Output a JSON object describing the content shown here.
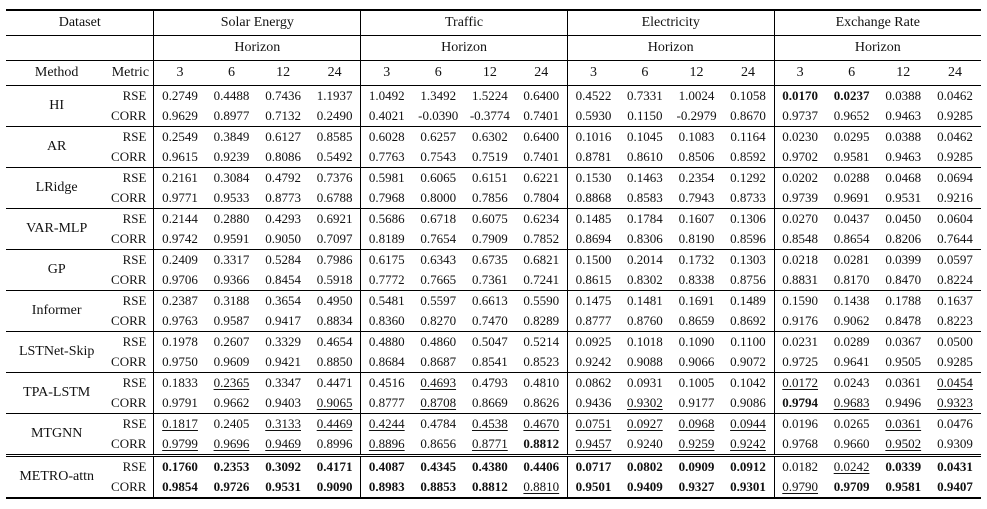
{
  "table": {
    "dataset_label": "Dataset",
    "horizon_label": "Horizon",
    "method_label": "Method",
    "metric_label": "Metric",
    "datasets": [
      "Solar Energy",
      "Traffic",
      "Electricity",
      "Exchange Rate"
    ],
    "horizons": [
      "3",
      "6",
      "12",
      "24"
    ],
    "metrics": [
      "RSE",
      "CORR"
    ],
    "colors": {
      "text": "#111111",
      "border": "#000000",
      "background": "#ffffff"
    },
    "rows": [
      {
        "method": "HI",
        "rse": [
          "0.2749",
          "0.4488",
          "0.7436",
          "1.1937",
          "1.0492",
          "1.3492",
          "1.5224",
          "0.6400",
          "0.4522",
          "0.7331",
          "1.0024",
          "0.1058",
          "0.0170",
          "0.0237",
          "0.0388",
          "0.0462"
        ],
        "rse_fmt": [
          "",
          "",
          "",
          "",
          "",
          "",
          "",
          "",
          "",
          "",
          "",
          "",
          "b",
          "b",
          "",
          ""
        ],
        "corr": [
          "0.9629",
          "0.8977",
          "0.7132",
          "0.2490",
          "0.4021",
          "-0.0390",
          "-0.3774",
          "0.7401",
          "0.5930",
          "0.1150",
          "-0.2979",
          "0.8670",
          "0.9737",
          "0.9652",
          "0.9463",
          "0.9285"
        ],
        "corr_fmt": [
          "",
          "",
          "",
          "",
          "",
          "",
          "",
          "",
          "",
          "",
          "",
          "",
          "",
          "",
          "",
          ""
        ]
      },
      {
        "method": "AR",
        "rse": [
          "0.2549",
          "0.3849",
          "0.6127",
          "0.8585",
          "0.6028",
          "0.6257",
          "0.6302",
          "0.6400",
          "0.1016",
          "0.1045",
          "0.1083",
          "0.1164",
          "0.0230",
          "0.0295",
          "0.0388",
          "0.0462"
        ],
        "rse_fmt": [
          "",
          "",
          "",
          "",
          "",
          "",
          "",
          "",
          "",
          "",
          "",
          "",
          "",
          "",
          "",
          ""
        ],
        "corr": [
          "0.9615",
          "0.9239",
          "0.8086",
          "0.5492",
          "0.7763",
          "0.7543",
          "0.7519",
          "0.7401",
          "0.8781",
          "0.8610",
          "0.8506",
          "0.8592",
          "0.9702",
          "0.9581",
          "0.9463",
          "0.9285"
        ],
        "corr_fmt": [
          "",
          "",
          "",
          "",
          "",
          "",
          "",
          "",
          "",
          "",
          "",
          "",
          "",
          "",
          "",
          ""
        ]
      },
      {
        "method": "LRidge",
        "rse": [
          "0.2161",
          "0.3084",
          "0.4792",
          "0.7376",
          "0.5981",
          "0.6065",
          "0.6151",
          "0.6221",
          "0.1530",
          "0.1463",
          "0.2354",
          "0.1292",
          "0.0202",
          "0.0288",
          "0.0468",
          "0.0694"
        ],
        "rse_fmt": [
          "",
          "",
          "",
          "",
          "",
          "",
          "",
          "",
          "",
          "",
          "",
          "",
          "",
          "",
          "",
          ""
        ],
        "corr": [
          "0.9771",
          "0.9533",
          "0.8773",
          "0.6788",
          "0.7968",
          "0.8000",
          "0.7856",
          "0.7804",
          "0.8868",
          "0.8583",
          "0.7943",
          "0.8733",
          "0.9739",
          "0.9691",
          "0.9531",
          "0.9216"
        ],
        "corr_fmt": [
          "",
          "",
          "",
          "",
          "",
          "",
          "",
          "",
          "",
          "",
          "",
          "",
          "",
          "",
          "",
          ""
        ]
      },
      {
        "method": "VAR-MLP",
        "rse": [
          "0.2144",
          "0.2880",
          "0.4293",
          "0.6921",
          "0.5686",
          "0.6718",
          "0.6075",
          "0.6234",
          "0.1485",
          "0.1784",
          "0.1607",
          "0.1306",
          "0.0270",
          "0.0437",
          "0.0450",
          "0.0604"
        ],
        "rse_fmt": [
          "",
          "",
          "",
          "",
          "",
          "",
          "",
          "",
          "",
          "",
          "",
          "",
          "",
          "",
          "",
          ""
        ],
        "corr": [
          "0.9742",
          "0.9591",
          "0.9050",
          "0.7097",
          "0.8189",
          "0.7654",
          "0.7909",
          "0.7852",
          "0.8694",
          "0.8306",
          "0.8190",
          "0.8596",
          "0.8548",
          "0.8654",
          "0.8206",
          "0.7644"
        ],
        "corr_fmt": [
          "",
          "",
          "",
          "",
          "",
          "",
          "",
          "",
          "",
          "",
          "",
          "",
          "",
          "",
          "",
          ""
        ]
      },
      {
        "method": "GP",
        "rse": [
          "0.2409",
          "0.3317",
          "0.5284",
          "0.7986",
          "0.6175",
          "0.6343",
          "0.6735",
          "0.6821",
          "0.1500",
          "0.2014",
          "0.1732",
          "0.1303",
          "0.0218",
          "0.0281",
          "0.0399",
          "0.0597"
        ],
        "rse_fmt": [
          "",
          "",
          "",
          "",
          "",
          "",
          "",
          "",
          "",
          "",
          "",
          "",
          "",
          "",
          "",
          ""
        ],
        "corr": [
          "0.9706",
          "0.9366",
          "0.8454",
          "0.5918",
          "0.7772",
          "0.7665",
          "0.7361",
          "0.7241",
          "0.8615",
          "0.8302",
          "0.8338",
          "0.8756",
          "0.8831",
          "0.8170",
          "0.8470",
          "0.8224"
        ],
        "corr_fmt": [
          "",
          "",
          "",
          "",
          "",
          "",
          "",
          "",
          "",
          "",
          "",
          "",
          "",
          "",
          "",
          ""
        ]
      },
      {
        "method": "Informer",
        "rse": [
          "0.2387",
          "0.3188",
          "0.3654",
          "0.4950",
          "0.5481",
          "0.5597",
          "0.6613",
          "0.5590",
          "0.1475",
          "0.1481",
          "0.1691",
          "0.1489",
          "0.1590",
          "0.1438",
          "0.1788",
          "0.1637"
        ],
        "rse_fmt": [
          "",
          "",
          "",
          "",
          "",
          "",
          "",
          "",
          "",
          "",
          "",
          "",
          "",
          "",
          "",
          ""
        ],
        "corr": [
          "0.9763",
          "0.9587",
          "0.9417",
          "0.8834",
          "0.8360",
          "0.8270",
          "0.7470",
          "0.8289",
          "0.8777",
          "0.8760",
          "0.8659",
          "0.8692",
          "0.9176",
          "0.9062",
          "0.8478",
          "0.8223"
        ],
        "corr_fmt": [
          "",
          "",
          "",
          "",
          "",
          "",
          "",
          "",
          "",
          "",
          "",
          "",
          "",
          "",
          "",
          ""
        ]
      },
      {
        "method": "LSTNet-Skip",
        "rse": [
          "0.1978",
          "0.2607",
          "0.3329",
          "0.4654",
          "0.4880",
          "0.4860",
          "0.5047",
          "0.5214",
          "0.0925",
          "0.1018",
          "0.1090",
          "0.1100",
          "0.0231",
          "0.0289",
          "0.0367",
          "0.0500"
        ],
        "rse_fmt": [
          "",
          "",
          "",
          "",
          "",
          "",
          "",
          "",
          "",
          "",
          "",
          "",
          "",
          "",
          "",
          ""
        ],
        "corr": [
          "0.9750",
          "0.9609",
          "0.9421",
          "0.8850",
          "0.8684",
          "0.8687",
          "0.8541",
          "0.8523",
          "0.9242",
          "0.9088",
          "0.9066",
          "0.9072",
          "0.9725",
          "0.9641",
          "0.9505",
          "0.9285"
        ],
        "corr_fmt": [
          "",
          "",
          "",
          "",
          "",
          "",
          "",
          "",
          "",
          "",
          "",
          "",
          "",
          "",
          "",
          ""
        ]
      },
      {
        "method": "TPA-LSTM",
        "rse": [
          "0.1833",
          "0.2365",
          "0.3347",
          "0.4471",
          "0.4516",
          "0.4693",
          "0.4793",
          "0.4810",
          "0.0862",
          "0.0931",
          "0.1005",
          "0.1042",
          "0.0172",
          "0.0243",
          "0.0361",
          "0.0454"
        ],
        "rse_fmt": [
          "",
          "u",
          "",
          "",
          "",
          "u",
          "",
          "",
          "",
          "",
          "",
          "",
          "u",
          "",
          "",
          "u"
        ],
        "corr": [
          "0.9791",
          "0.9662",
          "0.9403",
          "0.9065",
          "0.8777",
          "0.8708",
          "0.8669",
          "0.8626",
          "0.9436",
          "0.9302",
          "0.9177",
          "0.9086",
          "0.9794",
          "0.9683",
          "0.9496",
          "0.9323"
        ],
        "corr_fmt": [
          "",
          "",
          "",
          "u",
          "",
          "u",
          "",
          "",
          "",
          "u",
          "",
          "",
          "b",
          "u",
          "",
          "u"
        ]
      },
      {
        "method": "MTGNN",
        "rse": [
          "0.1817",
          "0.2405",
          "0.3133",
          "0.4469",
          "0.4244",
          "0.4784",
          "0.4538",
          "0.4670",
          "0.0751",
          "0.0927",
          "0.0968",
          "0.0944",
          "0.0196",
          "0.0265",
          "0.0361",
          "0.0476"
        ],
        "rse_fmt": [
          "u",
          "",
          "u",
          "u",
          "u",
          "",
          "u",
          "u",
          "u",
          "u",
          "u",
          "u",
          "",
          "",
          "u",
          ""
        ],
        "corr": [
          "0.9799",
          "0.9696",
          "0.9469",
          "0.8996",
          "0.8896",
          "0.8656",
          "0.8771",
          "0.8812",
          "0.9457",
          "0.9240",
          "0.9259",
          "0.9242",
          "0.9768",
          "0.9660",
          "0.9502",
          "0.9309"
        ],
        "corr_fmt": [
          "u",
          "u",
          "u",
          "",
          "u",
          "",
          "u",
          "b",
          "u",
          "",
          "u",
          "u",
          "",
          "",
          "u",
          ""
        ]
      },
      {
        "method": "METRO-attn",
        "rse": [
          "0.1760",
          "0.2353",
          "0.3092",
          "0.4171",
          "0.4087",
          "0.4345",
          "0.4380",
          "0.4406",
          "0.0717",
          "0.0802",
          "0.0909",
          "0.0912",
          "0.0182",
          "0.0242",
          "0.0339",
          "0.0431"
        ],
        "rse_fmt": [
          "b",
          "b",
          "b",
          "b",
          "b",
          "b",
          "b",
          "b",
          "b",
          "b",
          "b",
          "b",
          "",
          "u",
          "b",
          "b"
        ],
        "corr": [
          "0.9854",
          "0.9726",
          "0.9531",
          "0.9090",
          "0.8983",
          "0.8853",
          "0.8812",
          "0.8810",
          "0.9501",
          "0.9409",
          "0.9327",
          "0.9301",
          "0.9790",
          "0.9709",
          "0.9581",
          "0.9407"
        ],
        "corr_fmt": [
          "b",
          "b",
          "b",
          "b",
          "b",
          "b",
          "b",
          "u",
          "b",
          "b",
          "b",
          "b",
          "u",
          "b",
          "b",
          "b"
        ]
      }
    ]
  }
}
